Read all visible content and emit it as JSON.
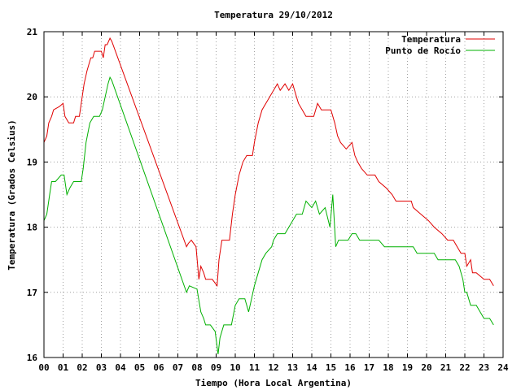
{
  "chart_data": {
    "type": "line",
    "title": "Temperatura 29/10/2012",
    "xlabel": "Tiempo (Hora Local Argentina)",
    "ylabel": "Temperatura (Grados Celsius)",
    "xlim": [
      0,
      24
    ],
    "ylim": [
      16,
      21
    ],
    "x_ticks": [
      "00",
      "01",
      "02",
      "03",
      "04",
      "05",
      "06",
      "07",
      "08",
      "09",
      "10",
      "11",
      "12",
      "13",
      "14",
      "15",
      "16",
      "17",
      "18",
      "19",
      "20",
      "21",
      "22",
      "23",
      "24"
    ],
    "y_ticks": [
      "16",
      "17",
      "18",
      "19",
      "20",
      "21"
    ],
    "grid": true,
    "legend_position": "top-right",
    "series": [
      {
        "name": "Temperatura",
        "color": "#e00000",
        "points": [
          [
            0.0,
            19.3
          ],
          [
            0.15,
            19.4
          ],
          [
            0.25,
            19.6
          ],
          [
            0.4,
            19.7
          ],
          [
            0.5,
            19.8
          ],
          [
            0.8,
            19.85
          ],
          [
            1.0,
            19.9
          ],
          [
            1.1,
            19.7
          ],
          [
            1.3,
            19.6
          ],
          [
            1.55,
            19.6
          ],
          [
            1.65,
            19.7
          ],
          [
            1.85,
            19.7
          ],
          [
            1.95,
            19.9
          ],
          [
            2.1,
            20.2
          ],
          [
            2.25,
            20.4
          ],
          [
            2.35,
            20.5
          ],
          [
            2.45,
            20.6
          ],
          [
            2.55,
            20.6
          ],
          [
            2.65,
            20.7
          ],
          [
            2.85,
            20.7
          ],
          [
            3.0,
            20.7
          ],
          [
            3.1,
            20.6
          ],
          [
            3.2,
            20.8
          ],
          [
            3.3,
            20.8
          ],
          [
            3.45,
            20.9
          ],
          [
            3.55,
            20.85
          ],
          [
            7.45,
            17.7
          ],
          [
            7.55,
            17.75
          ],
          [
            7.7,
            17.8
          ],
          [
            7.95,
            17.7
          ],
          [
            8.1,
            17.2
          ],
          [
            8.2,
            17.4
          ],
          [
            8.35,
            17.3
          ],
          [
            8.45,
            17.2
          ],
          [
            8.8,
            17.2
          ],
          [
            9.05,
            17.1
          ],
          [
            9.15,
            17.5
          ],
          [
            9.3,
            17.8
          ],
          [
            9.7,
            17.8
          ],
          [
            9.85,
            18.2
          ],
          [
            10.0,
            18.5
          ],
          [
            10.2,
            18.8
          ],
          [
            10.4,
            19.0
          ],
          [
            10.6,
            19.1
          ],
          [
            10.9,
            19.1
          ],
          [
            11.0,
            19.3
          ],
          [
            11.2,
            19.6
          ],
          [
            11.4,
            19.8
          ],
          [
            11.6,
            19.9
          ],
          [
            11.8,
            20.0
          ],
          [
            12.0,
            20.1
          ],
          [
            12.2,
            20.2
          ],
          [
            12.35,
            20.1
          ],
          [
            12.6,
            20.2
          ],
          [
            12.8,
            20.1
          ],
          [
            13.0,
            20.2
          ],
          [
            13.2,
            20.0
          ],
          [
            13.3,
            19.9
          ],
          [
            13.5,
            19.8
          ],
          [
            13.7,
            19.7
          ],
          [
            14.1,
            19.7
          ],
          [
            14.3,
            19.9
          ],
          [
            14.5,
            19.8
          ],
          [
            14.8,
            19.8
          ],
          [
            15.0,
            19.8
          ],
          [
            15.2,
            19.6
          ],
          [
            15.35,
            19.4
          ],
          [
            15.5,
            19.3
          ],
          [
            15.8,
            19.2
          ],
          [
            16.1,
            19.3
          ],
          [
            16.25,
            19.1
          ],
          [
            16.4,
            19.0
          ],
          [
            16.6,
            18.9
          ],
          [
            16.9,
            18.8
          ],
          [
            17.3,
            18.8
          ],
          [
            17.5,
            18.7
          ],
          [
            17.9,
            18.6
          ],
          [
            18.2,
            18.5
          ],
          [
            18.4,
            18.4
          ],
          [
            19.2,
            18.4
          ],
          [
            19.3,
            18.3
          ],
          [
            19.7,
            18.2
          ],
          [
            20.1,
            18.1
          ],
          [
            20.4,
            18.0
          ],
          [
            20.8,
            17.9
          ],
          [
            21.1,
            17.8
          ],
          [
            21.4,
            17.8
          ],
          [
            21.6,
            17.7
          ],
          [
            21.8,
            17.6
          ],
          [
            22.0,
            17.6
          ],
          [
            22.1,
            17.4
          ],
          [
            22.3,
            17.5
          ],
          [
            22.4,
            17.3
          ],
          [
            22.6,
            17.3
          ],
          [
            23.0,
            17.2
          ],
          [
            23.3,
            17.2
          ],
          [
            23.5,
            17.1
          ]
        ]
      },
      {
        "name": "Punto de Rocío",
        "color": "#00b000",
        "points": [
          [
            0.0,
            18.1
          ],
          [
            0.15,
            18.2
          ],
          [
            0.3,
            18.5
          ],
          [
            0.4,
            18.7
          ],
          [
            0.6,
            18.7
          ],
          [
            0.9,
            18.8
          ],
          [
            1.05,
            18.8
          ],
          [
            1.2,
            18.5
          ],
          [
            1.35,
            18.6
          ],
          [
            1.55,
            18.7
          ],
          [
            1.95,
            18.7
          ],
          [
            2.05,
            18.9
          ],
          [
            2.2,
            19.3
          ],
          [
            2.4,
            19.6
          ],
          [
            2.6,
            19.7
          ],
          [
            2.9,
            19.7
          ],
          [
            3.05,
            19.8
          ],
          [
            3.2,
            20.0
          ],
          [
            3.35,
            20.2
          ],
          [
            3.45,
            20.3
          ],
          [
            3.55,
            20.25
          ],
          [
            7.45,
            17.0
          ],
          [
            7.6,
            17.1
          ],
          [
            8.0,
            17.05
          ],
          [
            8.2,
            16.7
          ],
          [
            8.35,
            16.6
          ],
          [
            8.45,
            16.5
          ],
          [
            8.7,
            16.5
          ],
          [
            8.95,
            16.4
          ],
          [
            9.1,
            16.05
          ],
          [
            9.2,
            16.3
          ],
          [
            9.4,
            16.5
          ],
          [
            9.8,
            16.5
          ],
          [
            10.0,
            16.8
          ],
          [
            10.2,
            16.9
          ],
          [
            10.5,
            16.9
          ],
          [
            10.7,
            16.7
          ],
          [
            10.85,
            16.9
          ],
          [
            11.0,
            17.1
          ],
          [
            11.2,
            17.3
          ],
          [
            11.4,
            17.5
          ],
          [
            11.6,
            17.6
          ],
          [
            11.9,
            17.7
          ],
          [
            12.0,
            17.8
          ],
          [
            12.2,
            17.9
          ],
          [
            12.6,
            17.9
          ],
          [
            12.8,
            18.0
          ],
          [
            13.0,
            18.1
          ],
          [
            13.2,
            18.2
          ],
          [
            13.5,
            18.2
          ],
          [
            13.7,
            18.4
          ],
          [
            14.0,
            18.3
          ],
          [
            14.2,
            18.4
          ],
          [
            14.4,
            18.2
          ],
          [
            14.7,
            18.3
          ],
          [
            14.95,
            18.0
          ],
          [
            15.1,
            18.5
          ],
          [
            15.25,
            17.7
          ],
          [
            15.4,
            17.8
          ],
          [
            15.9,
            17.8
          ],
          [
            16.1,
            17.9
          ],
          [
            16.3,
            17.9
          ],
          [
            16.5,
            17.8
          ],
          [
            17.1,
            17.8
          ],
          [
            17.5,
            17.8
          ],
          [
            17.8,
            17.7
          ],
          [
            18.2,
            17.7
          ],
          [
            18.4,
            17.7
          ],
          [
            19.3,
            17.7
          ],
          [
            19.5,
            17.6
          ],
          [
            20.0,
            17.6
          ],
          [
            20.4,
            17.6
          ],
          [
            20.6,
            17.5
          ],
          [
            21.1,
            17.5
          ],
          [
            21.5,
            17.5
          ],
          [
            21.7,
            17.4
          ],
          [
            21.9,
            17.2
          ],
          [
            22.0,
            17.0
          ],
          [
            22.1,
            17.0
          ],
          [
            22.3,
            16.8
          ],
          [
            22.6,
            16.8
          ],
          [
            22.8,
            16.7
          ],
          [
            23.0,
            16.6
          ],
          [
            23.3,
            16.6
          ],
          [
            23.5,
            16.5
          ]
        ]
      }
    ]
  }
}
